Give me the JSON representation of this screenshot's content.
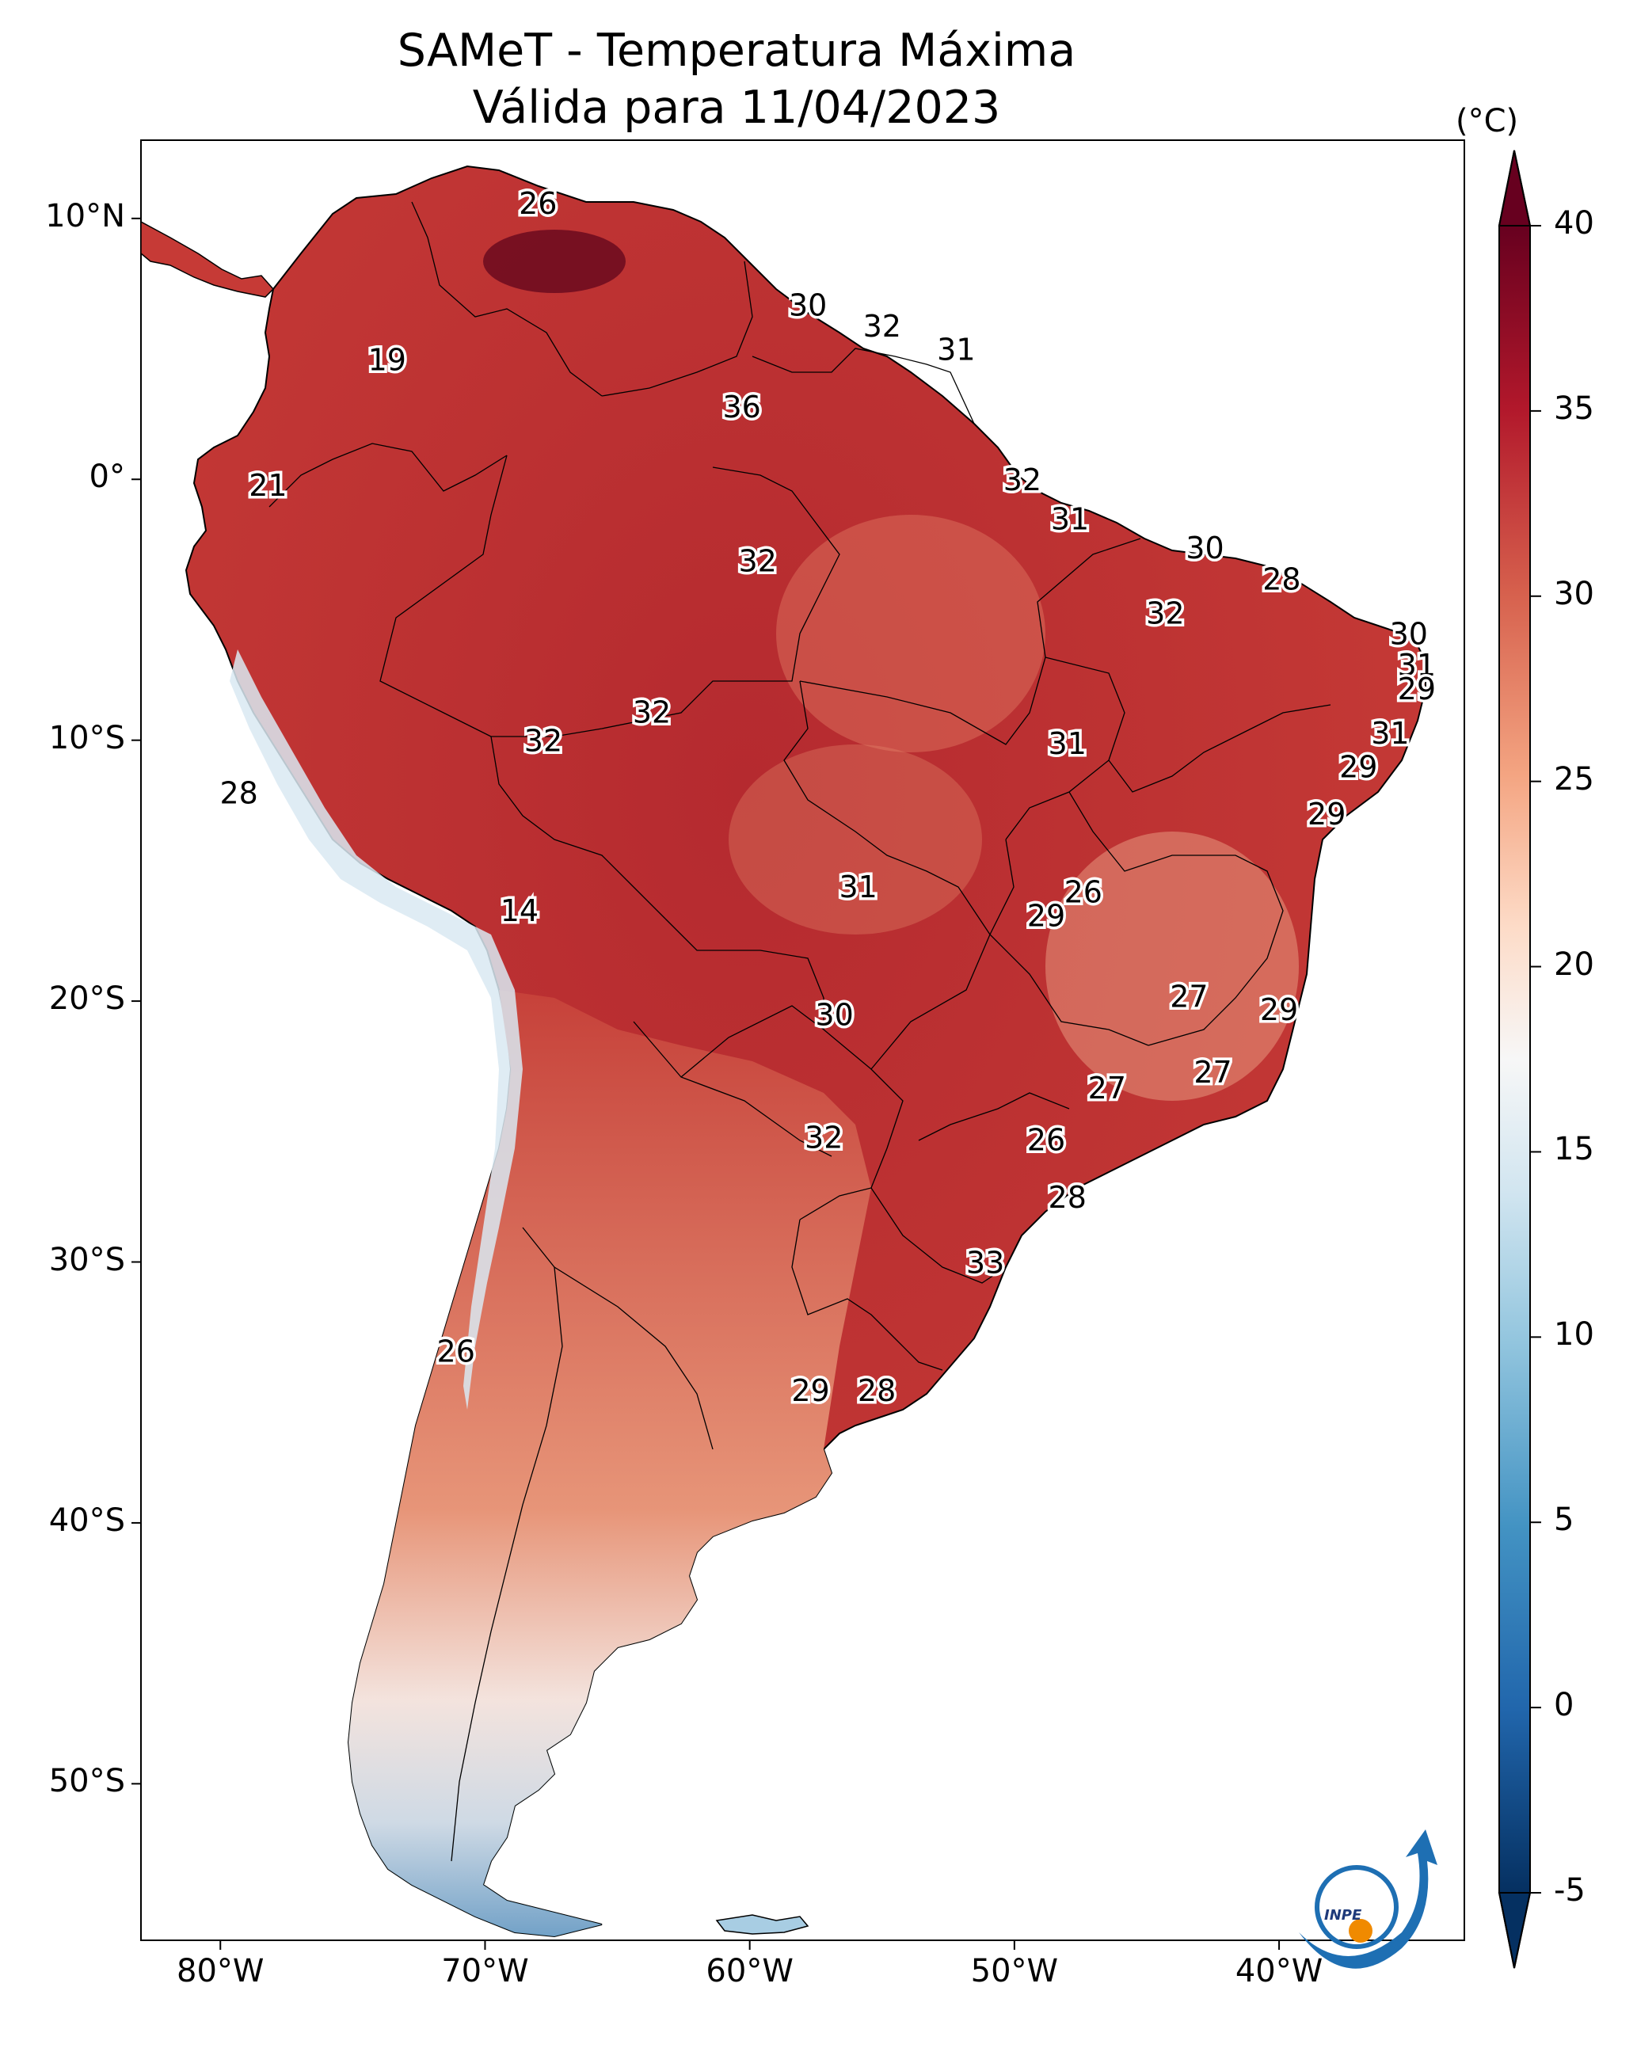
{
  "title_line1": "SAMeT - Temperatura Máxima",
  "title_line2": "Válida para 11/04/2023",
  "map": {
    "lon_range": [
      -83,
      -33
    ],
    "lat_range": [
      -56,
      13
    ],
    "lat_ticks": [
      {
        "lat": 10,
        "label": "10°N"
      },
      {
        "lat": 0,
        "label": "0°"
      },
      {
        "lat": -10,
        "label": "10°S"
      },
      {
        "lat": -20,
        "label": "20°S"
      },
      {
        "lat": -30,
        "label": "30°S"
      },
      {
        "lat": -40,
        "label": "40°S"
      },
      {
        "lat": -50,
        "label": "50°S"
      }
    ],
    "lon_ticks": [
      {
        "lon": -80,
        "label": "80°W"
      },
      {
        "lon": -70,
        "label": "70°W"
      },
      {
        "lon": -60,
        "label": "60°W"
      },
      {
        "lon": -50,
        "label": "50°W"
      },
      {
        "lon": -40,
        "label": "40°W"
      }
    ],
    "station_labels": [
      {
        "lon": -68.0,
        "lat": 10.6,
        "value": "26"
      },
      {
        "lon": -57.8,
        "lat": 6.7,
        "value": "30"
      },
      {
        "lon": -55.0,
        "lat": 5.9,
        "value": "32"
      },
      {
        "lon": -52.2,
        "lat": 5.0,
        "value": "31"
      },
      {
        "lon": -73.7,
        "lat": 4.6,
        "value": "19"
      },
      {
        "lon": -60.3,
        "lat": 2.8,
        "value": "36"
      },
      {
        "lon": -78.2,
        "lat": -0.2,
        "value": "21"
      },
      {
        "lon": -49.7,
        "lat": 0.0,
        "value": "32"
      },
      {
        "lon": -47.9,
        "lat": -1.5,
        "value": "31"
      },
      {
        "lon": -59.7,
        "lat": -3.1,
        "value": "32"
      },
      {
        "lon": -42.8,
        "lat": -2.6,
        "value": "30"
      },
      {
        "lon": -39.9,
        "lat": -3.8,
        "value": "28"
      },
      {
        "lon": -44.3,
        "lat": -5.1,
        "value": "32"
      },
      {
        "lon": -35.1,
        "lat": -5.9,
        "value": "30"
      },
      {
        "lon": -34.8,
        "lat": -7.1,
        "value": "31"
      },
      {
        "lon": -34.8,
        "lat": -8.0,
        "value": "29"
      },
      {
        "lon": -63.7,
        "lat": -8.9,
        "value": "32"
      },
      {
        "lon": -67.8,
        "lat": -10.0,
        "value": "32"
      },
      {
        "lon": -48.0,
        "lat": -10.1,
        "value": "31"
      },
      {
        "lon": -35.8,
        "lat": -9.7,
        "value": "31"
      },
      {
        "lon": -37.0,
        "lat": -11.0,
        "value": "29"
      },
      {
        "lon": -79.3,
        "lat": -12.0,
        "value": "28"
      },
      {
        "lon": -38.2,
        "lat": -12.8,
        "value": "29"
      },
      {
        "lon": -55.9,
        "lat": -15.6,
        "value": "31"
      },
      {
        "lon": -47.4,
        "lat": -15.8,
        "value": "26"
      },
      {
        "lon": -48.8,
        "lat": -16.7,
        "value": "29"
      },
      {
        "lon": -68.7,
        "lat": -16.5,
        "value": "14"
      },
      {
        "lon": -43.4,
        "lat": -19.8,
        "value": "27"
      },
      {
        "lon": -40.0,
        "lat": -20.3,
        "value": "29"
      },
      {
        "lon": -56.8,
        "lat": -20.5,
        "value": "30"
      },
      {
        "lon": -42.5,
        "lat": -22.7,
        "value": "27"
      },
      {
        "lon": -46.5,
        "lat": -23.3,
        "value": "27"
      },
      {
        "lon": -48.8,
        "lat": -25.3,
        "value": "26"
      },
      {
        "lon": -57.2,
        "lat": -25.2,
        "value": "32"
      },
      {
        "lon": -48.0,
        "lat": -27.5,
        "value": "28"
      },
      {
        "lon": -51.1,
        "lat": -30.0,
        "value": "33"
      },
      {
        "lon": -71.1,
        "lat": -33.4,
        "value": "26"
      },
      {
        "lon": -57.7,
        "lat": -34.9,
        "value": "29"
      },
      {
        "lon": -55.2,
        "lat": -34.9,
        "value": "28"
      }
    ]
  },
  "colorbar": {
    "unit": "(°C)",
    "min": -5,
    "max": 40,
    "ticks": [
      "-5",
      "0",
      "5",
      "10",
      "15",
      "20",
      "25",
      "30",
      "35",
      "40"
    ],
    "colors": [
      "#053061",
      "#2166ac",
      "#4393c3",
      "#92c5de",
      "#d1e5f0",
      "#f7f7f7",
      "#fddbc7",
      "#f4a582",
      "#d6604d",
      "#b2182b",
      "#67001f"
    ]
  },
  "logo_text": "INPE"
}
